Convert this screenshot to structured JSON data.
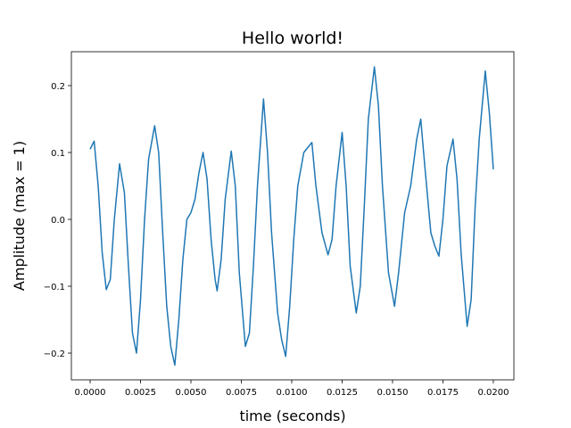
{
  "chart_data": {
    "type": "line",
    "title": "Hello world!",
    "xlabel": "time (seconds)",
    "ylabel": "Amplitude (max = 1)",
    "color": "#1f77b4",
    "x": [
      0,
      0.0002,
      0.0004,
      0.0006,
      0.0008,
      0.001,
      0.0012,
      0.00146,
      0.0017,
      0.0019,
      0.0021,
      0.0023,
      0.0025,
      0.0027,
      0.0029,
      0.0032,
      0.0034,
      0.0036,
      0.0038,
      0.004,
      0.0042,
      0.0044,
      0.0046,
      0.0048,
      0.005,
      0.0052,
      0.0054,
      0.0056,
      0.0058,
      0.006,
      0.0062,
      0.0063,
      0.0065,
      0.0067,
      0.007,
      0.0072,
      0.0074,
      0.0077,
      0.0079,
      0.0081,
      0.0083,
      0.0086,
      0.0088,
      0.009,
      0.0093,
      0.0095,
      0.0097,
      0.0099,
      0.0101,
      0.0103,
      0.0106,
      0.011,
      0.0112,
      0.0115,
      0.0118,
      0.012,
      0.0122,
      0.0125,
      0.0127,
      0.0129,
      0.0132,
      0.0134,
      0.0136,
      0.0138,
      0.0141,
      0.0143,
      0.0145,
      0.0148,
      0.0151,
      0.0153,
      0.0156,
      0.0159,
      0.0162,
      0.0164,
      0.0166,
      0.0169,
      0.0171,
      0.0173,
      0.0175,
      0.0177,
      0.018,
      0.0182,
      0.0184,
      0.0187,
      0.0189,
      0.0191,
      0.0193,
      0.0196,
      0.0198,
      0.02
    ],
    "values": [
      0.105,
      0.117,
      0.05,
      -0.05,
      -0.105,
      -0.09,
      0.0,
      0.083,
      0.04,
      -0.07,
      -0.17,
      -0.2,
      -0.12,
      0.0,
      0.09,
      0.14,
      0.1,
      -0.02,
      -0.13,
      -0.19,
      -0.218,
      -0.15,
      -0.06,
      0.0,
      0.01,
      0.03,
      0.07,
      0.1,
      0.06,
      -0.03,
      -0.09,
      -0.107,
      -0.06,
      0.03,
      0.102,
      0.05,
      -0.08,
      -0.19,
      -0.17,
      -0.07,
      0.05,
      0.18,
      0.1,
      -0.02,
      -0.14,
      -0.18,
      -0.205,
      -0.13,
      -0.03,
      0.05,
      0.1,
      0.115,
      0.05,
      -0.02,
      -0.053,
      -0.03,
      0.05,
      0.13,
      0.05,
      -0.07,
      -0.14,
      -0.1,
      0.02,
      0.15,
      0.228,
      0.17,
      0.05,
      -0.08,
      -0.13,
      -0.08,
      0.01,
      0.05,
      0.12,
      0.15,
      0.08,
      -0.02,
      -0.04,
      -0.055,
      0.0,
      0.08,
      0.12,
      0.06,
      -0.05,
      -0.16,
      -0.12,
      0.02,
      0.12,
      0.222,
      0.16,
      0.075
    ],
    "xlim": [
      -0.00093,
      0.02102
    ],
    "ylim": [
      -0.24,
      0.2507
    ],
    "xticks": [
      {
        "value": 0,
        "label": "0.0000"
      },
      {
        "value": 0.0025,
        "label": "0.0025"
      },
      {
        "value": 0.005,
        "label": "0.0050"
      },
      {
        "value": 0.0075,
        "label": "0.0075"
      },
      {
        "value": 0.01,
        "label": "0.0100"
      },
      {
        "value": 0.0125,
        "label": "0.0125"
      },
      {
        "value": 0.015,
        "label": "0.0150"
      },
      {
        "value": 0.0175,
        "label": "0.0175"
      },
      {
        "value": 0.02,
        "label": "0.0200"
      }
    ],
    "yticks": [
      {
        "value": -0.2,
        "label": "−0.2"
      },
      {
        "value": -0.1,
        "label": "−0.1"
      },
      {
        "value": 0,
        "label": "0.0"
      },
      {
        "value": 0.1,
        "label": "0.1"
      },
      {
        "value": 0.2,
        "label": "0.2"
      }
    ]
  }
}
